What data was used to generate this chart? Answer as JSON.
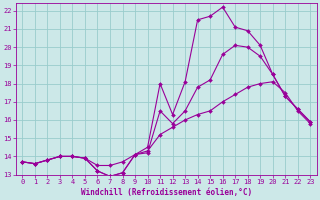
{
  "title": "Windchill (Refroidissement éolien,°C)",
  "background_color": "#cce8e8",
  "grid_color": "#99cccc",
  "line_color": "#990099",
  "xlim": [
    -0.5,
    23.5
  ],
  "ylim": [
    13,
    22.4
  ],
  "xtick_labels": [
    "0",
    "1",
    "2",
    "3",
    "4",
    "5",
    "6",
    "7",
    "8",
    "9",
    "10",
    "11",
    "12",
    "13",
    "14",
    "15",
    "16",
    "17",
    "18",
    "19",
    "20",
    "21",
    "22",
    "23"
  ],
  "xtick_vals": [
    0,
    1,
    2,
    3,
    4,
    5,
    6,
    7,
    8,
    9,
    10,
    11,
    12,
    13,
    14,
    15,
    16,
    17,
    18,
    19,
    20,
    21,
    22,
    23
  ],
  "ytick_vals": [
    13,
    14,
    15,
    16,
    17,
    18,
    19,
    20,
    21,
    22
  ],
  "series1_x": [
    0,
    1,
    2,
    3,
    4,
    5,
    6,
    7,
    8,
    9,
    10,
    11,
    12,
    13,
    14,
    15,
    16,
    17,
    18,
    19,
    20,
    21,
    22,
    23
  ],
  "series1_y": [
    13.7,
    13.6,
    13.8,
    14.0,
    14.0,
    13.9,
    13.2,
    12.9,
    13.1,
    14.1,
    14.5,
    18.0,
    16.3,
    18.1,
    21.5,
    21.7,
    22.2,
    21.1,
    20.9,
    20.1,
    18.5,
    17.3,
    16.6,
    15.9
  ],
  "series2_x": [
    0,
    1,
    2,
    3,
    4,
    5,
    6,
    7,
    8,
    9,
    10,
    11,
    12,
    13,
    14,
    15,
    16,
    17,
    18,
    19,
    20,
    21,
    22,
    23
  ],
  "series2_y": [
    13.7,
    13.6,
    13.8,
    14.0,
    14.0,
    13.9,
    13.2,
    12.9,
    13.1,
    14.1,
    14.2,
    16.5,
    15.8,
    16.5,
    17.8,
    18.2,
    19.6,
    20.1,
    20.0,
    19.5,
    18.5,
    17.3,
    16.6,
    15.9
  ],
  "series3_x": [
    0,
    1,
    2,
    3,
    4,
    5,
    6,
    7,
    8,
    9,
    10,
    11,
    12,
    13,
    14,
    15,
    16,
    17,
    18,
    19,
    20,
    21,
    22,
    23
  ],
  "series3_y": [
    13.7,
    13.6,
    13.8,
    14.0,
    14.0,
    13.9,
    13.5,
    13.5,
    13.7,
    14.1,
    14.3,
    15.2,
    15.6,
    16.0,
    16.3,
    16.5,
    17.0,
    17.4,
    17.8,
    18.0,
    18.1,
    17.5,
    16.5,
    15.8
  ],
  "marker_size": 2.0,
  "line_width": 0.8,
  "xlabel_fontsize": 5.5,
  "tick_fontsize": 5.0
}
